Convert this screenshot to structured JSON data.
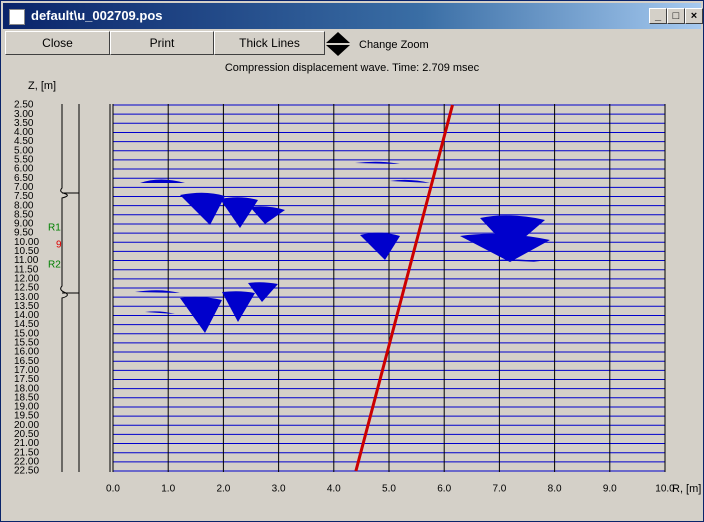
{
  "window": {
    "title": "default\\u_002709.pos"
  },
  "toolbar": {
    "buttons": [
      "Close",
      "Print",
      "Thick Lines"
    ],
    "zoom_label": "Change Zoom"
  },
  "chart_data": {
    "type": "line",
    "title": "Compression displacement wave. Time: 2.709 msec",
    "xlabel": "R, [m]",
    "ylabel": "Z, [m]",
    "x": [
      6.15,
      4.4
    ],
    "series": [
      {
        "color": "#cc0000",
        "values": [
          2.5,
          22.5
        ]
      }
    ],
    "xlim": [
      0,
      10
    ],
    "ylim": [
      2.5,
      22.5
    ],
    "y_inverted": true,
    "grid": true,
    "xticks": [
      {
        "value": 0,
        "label": "0.0"
      },
      {
        "value": 1,
        "label": "1.0"
      },
      {
        "value": 2,
        "label": "2.0"
      },
      {
        "value": 3,
        "label": "3.0"
      },
      {
        "value": 4,
        "label": "4.0"
      },
      {
        "value": 5,
        "label": "5.0"
      },
      {
        "value": 6,
        "label": "6.0"
      },
      {
        "value": 7,
        "label": "7.0"
      },
      {
        "value": 8,
        "label": "8.0"
      },
      {
        "value": 9,
        "label": "9.0"
      },
      {
        "value": 10,
        "label": "10.0"
      }
    ],
    "yticks": [
      {
        "value": 2.5,
        "label": "2.50"
      },
      {
        "value": 3,
        "label": "3.00"
      },
      {
        "value": 3.5,
        "label": "3.50"
      },
      {
        "value": 4,
        "label": "4.00"
      },
      {
        "value": 4.5,
        "label": "4.50"
      },
      {
        "value": 5,
        "label": "5.00"
      },
      {
        "value": 5.5,
        "label": "5.50"
      },
      {
        "value": 6,
        "label": "6.00"
      },
      {
        "value": 6.5,
        "label": "6.50"
      },
      {
        "value": 7,
        "label": "7.00"
      },
      {
        "value": 7.5,
        "label": "7.50"
      },
      {
        "value": 8,
        "label": "8.00"
      },
      {
        "value": 8.5,
        "label": "8.50"
      },
      {
        "value": 9,
        "label": "9.00"
      },
      {
        "value": 9.5,
        "label": "9.50"
      },
      {
        "value": 10,
        "label": "10.00"
      },
      {
        "value": 10.5,
        "label": "10.50"
      },
      {
        "value": 11,
        "label": "11.00"
      },
      {
        "value": 11.5,
        "label": "11.50"
      },
      {
        "value": 12,
        "label": "12.00"
      },
      {
        "value": 12.5,
        "label": "12.50"
      },
      {
        "value": 13,
        "label": "13.00"
      },
      {
        "value": 13.5,
        "label": "13.50"
      },
      {
        "value": 14,
        "label": "14.00"
      },
      {
        "value": 14.5,
        "label": "14.50"
      },
      {
        "value": 15,
        "label": "15.00"
      },
      {
        "value": 15.5,
        "label": "15.50"
      },
      {
        "value": 16,
        "label": "16.00"
      },
      {
        "value": 16.5,
        "label": "16.50"
      },
      {
        "value": 17,
        "label": "17.00"
      },
      {
        "value": 17.5,
        "label": "17.50"
      },
      {
        "value": 18,
        "label": "18.00"
      },
      {
        "value": 18.5,
        "label": "18.50"
      },
      {
        "value": 19,
        "label": "19.00"
      },
      {
        "value": 19.5,
        "label": "19.50"
      },
      {
        "value": 20,
        "label": "20.00"
      },
      {
        "value": 20.5,
        "label": "20.50"
      },
      {
        "value": 21,
        "label": "21.00"
      },
      {
        "value": 21.5,
        "label": "21.50"
      },
      {
        "value": 22,
        "label": "22.00"
      },
      {
        "value": 22.5,
        "label": "22.50"
      }
    ],
    "annotations": [
      "R1",
      "9",
      "R2"
    ]
  }
}
